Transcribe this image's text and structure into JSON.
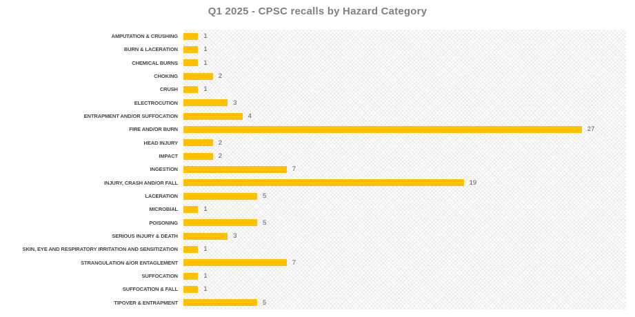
{
  "chart_data": {
    "type": "bar",
    "orientation": "horizontal",
    "title": "Q1 2025 - CPSC recalls by Hazard Category",
    "categories": [
      "AMPUTATION & CRUSHING",
      "BURN & LACERATION",
      "CHEMICAL BURNS",
      "CHOKING",
      "CRUSH",
      "ELECTROCUTION",
      "ENTRAPMENT AND/OR SUFFOCATION",
      "FIRE AND/OR BURN",
      "HEAD INJURY",
      "IMPACT",
      "INGESTION",
      "INJURY, CRASH AND/OR FALL",
      "LACERATION",
      "MICROBIAL",
      "POISONING",
      "SERIOUS INJURY & DEATH",
      "SKIN, EYE AND RESPIRATORY IRRITATION AND SENSITIZATION",
      "STRANGULATION &/OR ENTAGLEMENT",
      "SUFFOCATION",
      "SUFFOCATION & FALL",
      "TIPOVER & ENTRAPMENT"
    ],
    "values": [
      1,
      1,
      1,
      2,
      1,
      3,
      4,
      27,
      2,
      2,
      7,
      19,
      5,
      1,
      5,
      3,
      1,
      7,
      1,
      1,
      5
    ],
    "xlabel": "",
    "ylabel": "",
    "xlim": [
      0,
      30
    ],
    "grid": false,
    "legend": false,
    "data_labels": true,
    "bar_color": "#FFC000",
    "value_label_color": "#595959",
    "category_label_color": "#444444",
    "title_color": "#808080",
    "plot_background_style": "light-diagonal-hatch"
  }
}
